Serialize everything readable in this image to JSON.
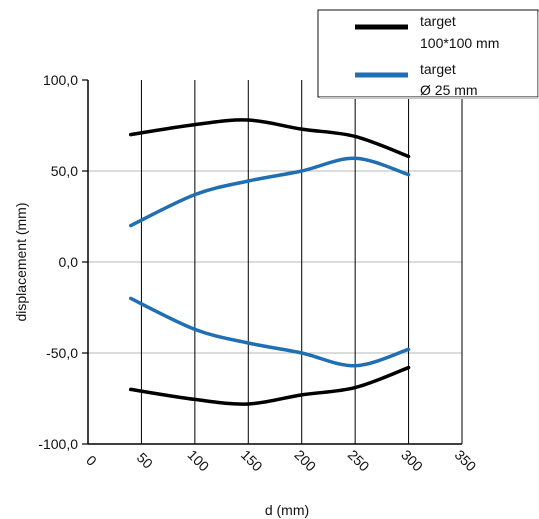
{
  "chart_data": {
    "type": "line",
    "title": "",
    "xlabel": "d (mm)",
    "ylabel": "displacement (mm)",
    "xlim": [
      0,
      350
    ],
    "ylim": [
      -100,
      100
    ],
    "x_ticks": [
      0,
      50,
      100,
      150,
      200,
      250,
      300,
      350
    ],
    "x_tick_labels": [
      "0",
      "50",
      "100",
      "150",
      "200",
      "250",
      "300",
      "350"
    ],
    "y_ticks": [
      -100,
      -50,
      0,
      50,
      100
    ],
    "y_tick_labels": [
      "-100,0",
      "-50,0",
      "0,0",
      "50,0",
      "100,0"
    ],
    "grid": {
      "vertical": true,
      "horizontal": true
    },
    "legend": {
      "placement": "top-right",
      "entries": [
        {
          "label_lines": [
            "target",
            "100*100 mm"
          ],
          "color": "#000000"
        },
        {
          "label_lines": [
            "target",
            "Ø 25 mm"
          ],
          "color": "#1f6fb2"
        }
      ]
    },
    "series": [
      {
        "name": "target 100*100 mm",
        "color": "#000000",
        "points": [
          {
            "x": 40,
            "y": 70
          },
          {
            "x": 100,
            "y": 75.5
          },
          {
            "x": 150,
            "y": 78
          },
          {
            "x": 200,
            "y": 73
          },
          {
            "x": 250,
            "y": 69
          },
          {
            "x": 300,
            "y": 58
          }
        ]
      },
      {
        "name": "target 100*100 mm",
        "color": "#000000",
        "points": [
          {
            "x": 40,
            "y": -70
          },
          {
            "x": 100,
            "y": -75.5
          },
          {
            "x": 150,
            "y": -78
          },
          {
            "x": 200,
            "y": -73
          },
          {
            "x": 250,
            "y": -69
          },
          {
            "x": 300,
            "y": -58
          }
        ]
      },
      {
        "name": "target Ø 25 mm",
        "color": "#1f6fb2",
        "points": [
          {
            "x": 40,
            "y": 20
          },
          {
            "x": 100,
            "y": 37
          },
          {
            "x": 150,
            "y": 44.5
          },
          {
            "x": 200,
            "y": 50
          },
          {
            "x": 250,
            "y": 57
          },
          {
            "x": 300,
            "y": 48
          }
        ]
      },
      {
        "name": "target Ø 25 mm",
        "color": "#1f6fb2",
        "points": [
          {
            "x": 40,
            "y": -20
          },
          {
            "x": 100,
            "y": -37
          },
          {
            "x": 150,
            "y": -44.5
          },
          {
            "x": 200,
            "y": -50
          },
          {
            "x": 250,
            "y": -57
          },
          {
            "x": 300,
            "y": -48
          }
        ]
      }
    ]
  }
}
